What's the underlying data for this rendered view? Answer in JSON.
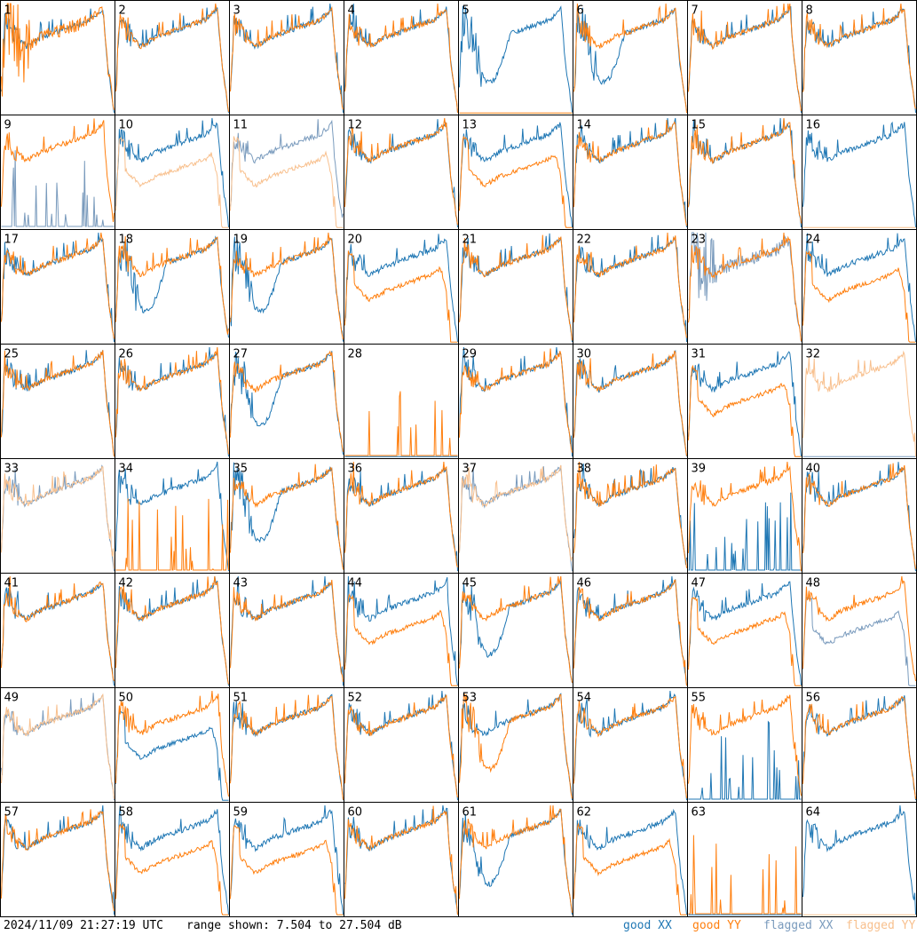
{
  "chart_data": {
    "type": "line",
    "layout": "small-multiples",
    "grid": {
      "rows": 8,
      "cols": 8
    },
    "y_units": "dB",
    "ylim": [
      7.504,
      27.504
    ],
    "series_styles": [
      {
        "name": "good XX",
        "color": "#1f77b4"
      },
      {
        "name": "good YY",
        "color": "#ff7f0e"
      },
      {
        "name": "flagged XX",
        "color": "#7a9bbd"
      },
      {
        "name": "flagged YY",
        "color": "#f8c08e"
      }
    ],
    "panels": [
      {
        "label": "1",
        "xx": "good",
        "yy": "good",
        "xx_shape": "normal",
        "yy_shape": "noisy"
      },
      {
        "label": "2",
        "xx": "good",
        "yy": "good",
        "xx_shape": "normal",
        "yy_shape": "normal"
      },
      {
        "label": "3",
        "xx": "good",
        "yy": "good",
        "xx_shape": "normal",
        "yy_shape": "normal"
      },
      {
        "label": "4",
        "xx": "good",
        "yy": "good",
        "xx_shape": "normal",
        "yy_shape": "normal"
      },
      {
        "label": "5",
        "xx": "good",
        "yy": "good",
        "xx_shape": "dipped",
        "yy_shape": "dead"
      },
      {
        "label": "6",
        "xx": "good",
        "yy": "good",
        "xx_shape": "dipped",
        "yy_shape": "normal"
      },
      {
        "label": "7",
        "xx": "good",
        "yy": "good",
        "xx_shape": "normal",
        "yy_shape": "normal"
      },
      {
        "label": "8",
        "xx": "good",
        "yy": "good",
        "xx_shape": "normal",
        "yy_shape": "normal"
      },
      {
        "label": "9",
        "xx": "flagged",
        "yy": "good",
        "xx_shape": "spiky",
        "yy_shape": "normal"
      },
      {
        "label": "10",
        "xx": "good",
        "yy": "flagged",
        "xx_shape": "normal",
        "yy_shape": "low"
      },
      {
        "label": "11",
        "xx": "flagged",
        "yy": "flagged",
        "xx_shape": "normal",
        "yy_shape": "low"
      },
      {
        "label": "12",
        "xx": "good",
        "yy": "good",
        "xx_shape": "normal",
        "yy_shape": "normal"
      },
      {
        "label": "13",
        "xx": "good",
        "yy": "good",
        "xx_shape": "normal",
        "yy_shape": "low"
      },
      {
        "label": "14",
        "xx": "good",
        "yy": "good",
        "xx_shape": "normal",
        "yy_shape": "normal"
      },
      {
        "label": "15",
        "xx": "good",
        "yy": "good",
        "xx_shape": "normal",
        "yy_shape": "normal"
      },
      {
        "label": "16",
        "xx": "good",
        "yy": "flagged",
        "xx_shape": "normal",
        "yy_shape": "dead"
      },
      {
        "label": "17",
        "xx": "good",
        "yy": "good",
        "xx_shape": "normal",
        "yy_shape": "normal"
      },
      {
        "label": "18",
        "xx": "good",
        "yy": "good",
        "xx_shape": "dipped",
        "yy_shape": "normal"
      },
      {
        "label": "19",
        "xx": "good",
        "yy": "good",
        "xx_shape": "dipped",
        "yy_shape": "normal"
      },
      {
        "label": "20",
        "xx": "good",
        "yy": "good",
        "xx_shape": "normal",
        "yy_shape": "low"
      },
      {
        "label": "21",
        "xx": "good",
        "yy": "good",
        "xx_shape": "normal",
        "yy_shape": "normal"
      },
      {
        "label": "22",
        "xx": "good",
        "yy": "good",
        "xx_shape": "normal",
        "yy_shape": "normal"
      },
      {
        "label": "23",
        "xx": "flagged",
        "yy": "good",
        "xx_shape": "noisy",
        "yy_shape": "normal"
      },
      {
        "label": "24",
        "xx": "good",
        "yy": "good",
        "xx_shape": "normal",
        "yy_shape": "low"
      },
      {
        "label": "25",
        "xx": "good",
        "yy": "good",
        "xx_shape": "normal",
        "yy_shape": "normal"
      },
      {
        "label": "26",
        "xx": "good",
        "yy": "good",
        "xx_shape": "normal",
        "yy_shape": "normal"
      },
      {
        "label": "27",
        "xx": "good",
        "yy": "good",
        "xx_shape": "dipped",
        "yy_shape": "normal"
      },
      {
        "label": "28",
        "xx": "good",
        "yy": "good",
        "xx_shape": "dead",
        "yy_shape": "spiky"
      },
      {
        "label": "29",
        "xx": "good",
        "yy": "good",
        "xx_shape": "normal",
        "yy_shape": "normal"
      },
      {
        "label": "30",
        "xx": "good",
        "yy": "good",
        "xx_shape": "normal",
        "yy_shape": "normal"
      },
      {
        "label": "31",
        "xx": "good",
        "yy": "good",
        "xx_shape": "normal",
        "yy_shape": "low"
      },
      {
        "label": "32",
        "xx": "flagged",
        "yy": "flagged",
        "xx_shape": "dead",
        "yy_shape": "normal"
      },
      {
        "label": "33",
        "xx": "flagged",
        "yy": "flagged",
        "xx_shape": "normal",
        "yy_shape": "normal"
      },
      {
        "label": "34",
        "xx": "good",
        "yy": "good",
        "xx_shape": "normal",
        "yy_shape": "spiky"
      },
      {
        "label": "35",
        "xx": "good",
        "yy": "good",
        "xx_shape": "dipped",
        "yy_shape": "normal"
      },
      {
        "label": "36",
        "xx": "good",
        "yy": "good",
        "xx_shape": "normal",
        "yy_shape": "normal"
      },
      {
        "label": "37",
        "xx": "flagged",
        "yy": "flagged",
        "xx_shape": "normal",
        "yy_shape": "normal"
      },
      {
        "label": "38",
        "xx": "good",
        "yy": "good",
        "xx_shape": "normal",
        "yy_shape": "normal"
      },
      {
        "label": "39",
        "xx": "good",
        "yy": "good",
        "xx_shape": "spiky",
        "yy_shape": "normal"
      },
      {
        "label": "40",
        "xx": "good",
        "yy": "good",
        "xx_shape": "normal",
        "yy_shape": "normal"
      },
      {
        "label": "41",
        "xx": "good",
        "yy": "good",
        "xx_shape": "normal",
        "yy_shape": "normal"
      },
      {
        "label": "42",
        "xx": "good",
        "yy": "good",
        "xx_shape": "normal",
        "yy_shape": "normal"
      },
      {
        "label": "43",
        "xx": "good",
        "yy": "good",
        "xx_shape": "normal",
        "yy_shape": "normal"
      },
      {
        "label": "44",
        "xx": "good",
        "yy": "good",
        "xx_shape": "normal",
        "yy_shape": "low"
      },
      {
        "label": "45",
        "xx": "good",
        "yy": "good",
        "xx_shape": "dipped",
        "yy_shape": "normal"
      },
      {
        "label": "46",
        "xx": "good",
        "yy": "good",
        "xx_shape": "normal",
        "yy_shape": "normal"
      },
      {
        "label": "47",
        "xx": "good",
        "yy": "good",
        "xx_shape": "normal",
        "yy_shape": "low"
      },
      {
        "label": "48",
        "xx": "flagged",
        "yy": "good",
        "xx_shape": "low",
        "yy_shape": "normal"
      },
      {
        "label": "49",
        "xx": "flagged",
        "yy": "flagged",
        "xx_shape": "normal",
        "yy_shape": "normal"
      },
      {
        "label": "50",
        "xx": "good",
        "yy": "good",
        "xx_shape": "low",
        "yy_shape": "normal"
      },
      {
        "label": "51",
        "xx": "good",
        "yy": "good",
        "xx_shape": "normal",
        "yy_shape": "normal"
      },
      {
        "label": "52",
        "xx": "good",
        "yy": "good",
        "xx_shape": "normal",
        "yy_shape": "normal"
      },
      {
        "label": "53",
        "xx": "good",
        "yy": "good",
        "xx_shape": "normal",
        "yy_shape": "dipped"
      },
      {
        "label": "54",
        "xx": "good",
        "yy": "good",
        "xx_shape": "normal",
        "yy_shape": "normal"
      },
      {
        "label": "55",
        "xx": "good",
        "yy": "good",
        "xx_shape": "spiky",
        "yy_shape": "normal"
      },
      {
        "label": "56",
        "xx": "good",
        "yy": "good",
        "xx_shape": "normal",
        "yy_shape": "normal"
      },
      {
        "label": "57",
        "xx": "good",
        "yy": "good",
        "xx_shape": "normal",
        "yy_shape": "normal"
      },
      {
        "label": "58",
        "xx": "good",
        "yy": "good",
        "xx_shape": "normal",
        "yy_shape": "low"
      },
      {
        "label": "59",
        "xx": "good",
        "yy": "good",
        "xx_shape": "normal",
        "yy_shape": "low"
      },
      {
        "label": "60",
        "xx": "good",
        "yy": "good",
        "xx_shape": "normal",
        "yy_shape": "normal"
      },
      {
        "label": "61",
        "xx": "good",
        "yy": "good",
        "xx_shape": "dipped",
        "yy_shape": "normal"
      },
      {
        "label": "62",
        "xx": "good",
        "yy": "good",
        "xx_shape": "normal",
        "yy_shape": "low"
      },
      {
        "label": "63",
        "xx": "good",
        "yy": "good",
        "xx_shape": "dead",
        "yy_shape": "spiky"
      },
      {
        "label": "64",
        "xx": "good",
        "yy": "flagged",
        "xx_shape": "normal",
        "yy_shape": "dead"
      }
    ]
  },
  "footer": {
    "timestamp": "2024/11/09 21:27:19 UTC",
    "range_text": "range shown: 7.504 to 27.504 dB",
    "legend": [
      {
        "text": "good XX",
        "color": "#1f77b4"
      },
      {
        "text": "good YY",
        "color": "#ff7f0e"
      },
      {
        "text": "flagged XX",
        "color": "#7a9bbd"
      },
      {
        "text": "flagged YY",
        "color": "#f8c08e"
      }
    ]
  }
}
